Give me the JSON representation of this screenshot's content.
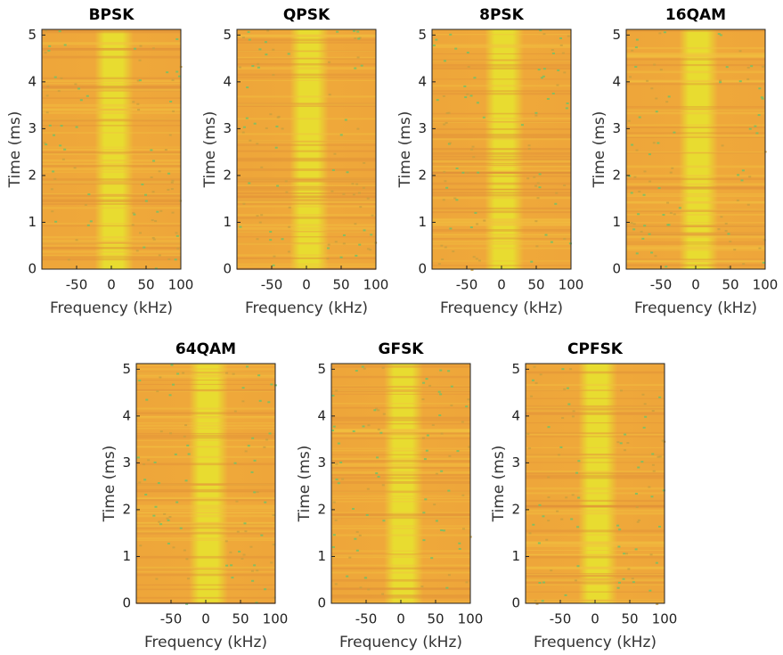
{
  "chart_data": [
    {
      "type": "spectrogram",
      "title": "BPSK",
      "xlabel": "Frequency (kHz)",
      "ylabel": "Time (ms)",
      "xlim": [
        -100,
        100
      ],
      "ylim": [
        0,
        5.12
      ],
      "xticks": [
        -50,
        0,
        50,
        100
      ],
      "yticks": [
        0,
        1,
        2,
        3,
        4,
        5
      ]
    },
    {
      "type": "spectrogram",
      "title": "QPSK",
      "xlabel": "Frequency (kHz)",
      "ylabel": "Time (ms)",
      "xlim": [
        -100,
        100
      ],
      "ylim": [
        0,
        5.12
      ],
      "xticks": [
        -50,
        0,
        50,
        100
      ],
      "yticks": [
        0,
        1,
        2,
        3,
        4,
        5
      ]
    },
    {
      "type": "spectrogram",
      "title": "8PSK",
      "xlabel": "Frequency (kHz)",
      "ylabel": "Time (ms)",
      "xlim": [
        -100,
        100
      ],
      "ylim": [
        0,
        5.12
      ],
      "xticks": [
        -50,
        0,
        50,
        100
      ],
      "yticks": [
        0,
        1,
        2,
        3,
        4,
        5
      ]
    },
    {
      "type": "spectrogram",
      "title": "16QAM",
      "xlabel": "Frequency (kHz)",
      "ylabel": "Time (ms)",
      "xlim": [
        -100,
        100
      ],
      "ylim": [
        0,
        5.12
      ],
      "xticks": [
        -50,
        0,
        50,
        100
      ],
      "yticks": [
        0,
        1,
        2,
        3,
        4,
        5
      ]
    },
    {
      "type": "spectrogram",
      "title": "64QAM",
      "xlabel": "Frequency (kHz)",
      "ylabel": "Time (ms)",
      "xlim": [
        -100,
        100
      ],
      "ylim": [
        0,
        5.12
      ],
      "xticks": [
        -50,
        0,
        50,
        100
      ],
      "yticks": [
        0,
        1,
        2,
        3,
        4,
        5
      ]
    },
    {
      "type": "spectrogram",
      "title": "GFSK",
      "xlabel": "Frequency (kHz)",
      "ylabel": "Time (ms)",
      "xlim": [
        -100,
        100
      ],
      "ylim": [
        0,
        5.12
      ],
      "xticks": [
        -50,
        0,
        50,
        100
      ],
      "yticks": [
        0,
        1,
        2,
        3,
        4,
        5
      ]
    },
    {
      "type": "spectrogram",
      "title": "CPFSK",
      "xlabel": "Frequency (kHz)",
      "ylabel": "Time (ms)",
      "xlim": [
        -100,
        100
      ],
      "ylim": [
        0,
        5.12
      ],
      "xticks": [
        -50,
        0,
        50,
        100
      ],
      "yticks": [
        0,
        1,
        2,
        3,
        4,
        5
      ]
    }
  ]
}
